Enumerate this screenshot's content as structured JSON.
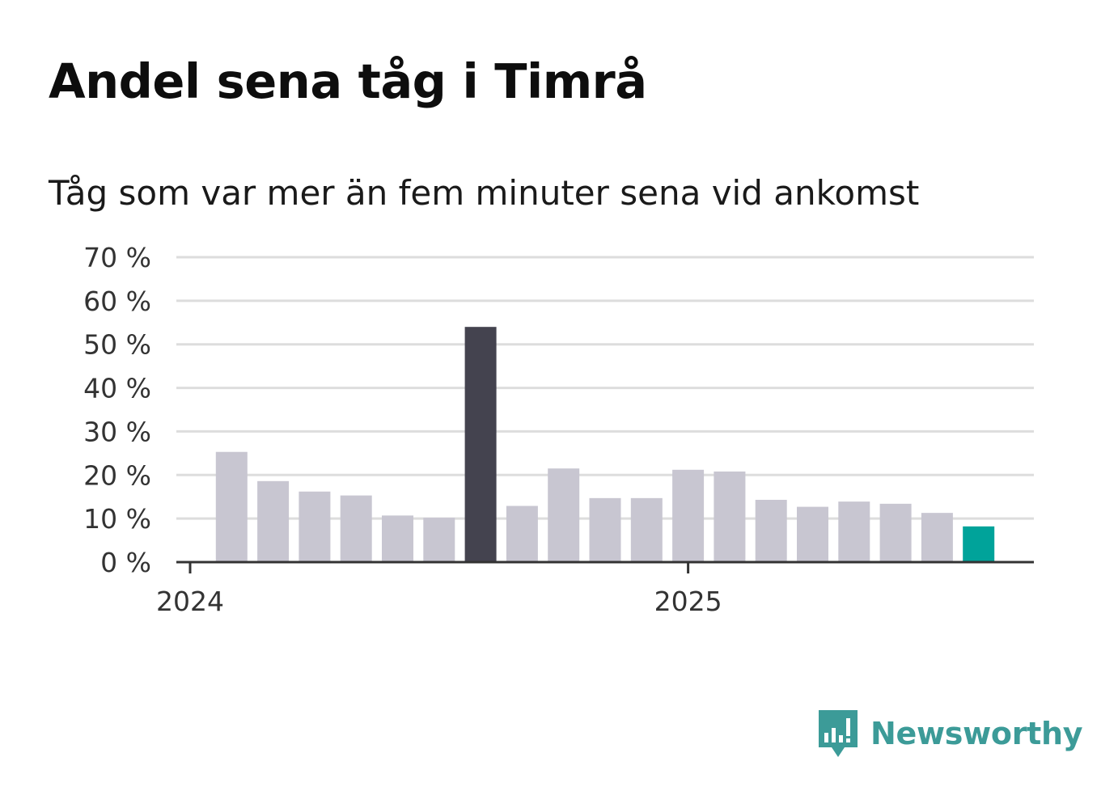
{
  "title": "Andel sena tåg i Timrå",
  "subtitle": "Tåg som var mer än fem minuter sena vid ankomst",
  "brand": {
    "name": "Newsworthy",
    "color": "#3c9b98"
  },
  "colors": {
    "bar_default": "#c8c6d1",
    "bar_highlight_max": "#44434f",
    "bar_highlight_latest": "#00a39a",
    "grid": "#dddddd",
    "axis": "#333333",
    "tick_label": "#333333"
  },
  "chart_data": {
    "type": "bar",
    "title": "Andel sena tåg i Timrå",
    "subtitle": "Tåg som var mer än fem minuter sena vid ankomst",
    "categories": [
      "2024-01",
      "2024-02",
      "2024-03",
      "2024-04",
      "2024-05",
      "2024-06",
      "2024-07",
      "2024-08",
      "2024-09",
      "2024-10",
      "2024-11",
      "2024-12",
      "2025-01",
      "2025-02",
      "2025-03",
      "2025-04",
      "2025-05",
      "2025-06",
      "2025-07",
      "2025-08"
    ],
    "values": [
      null,
      25.3,
      18.6,
      16.2,
      15.3,
      10.7,
      10.2,
      54.0,
      12.9,
      21.5,
      14.7,
      14.7,
      21.2,
      20.8,
      14.3,
      12.7,
      13.9,
      13.4,
      11.3,
      8.2
    ],
    "ylim": [
      0,
      70
    ],
    "yticks": [
      "0 %",
      "10 %",
      "20 %",
      "30 %",
      "40 %",
      "50 %",
      "60 %",
      "70 %"
    ],
    "ytick_values": [
      0,
      10,
      20,
      30,
      40,
      50,
      60,
      70
    ],
    "xtick_labels": [
      {
        "category": "2024-01",
        "label": "2024"
      },
      {
        "category": "2025-01",
        "label": "2025"
      }
    ],
    "highlight_max_category": "2024-08",
    "highlight_latest_category": "2025-08",
    "grid": true,
    "legend": "none"
  }
}
